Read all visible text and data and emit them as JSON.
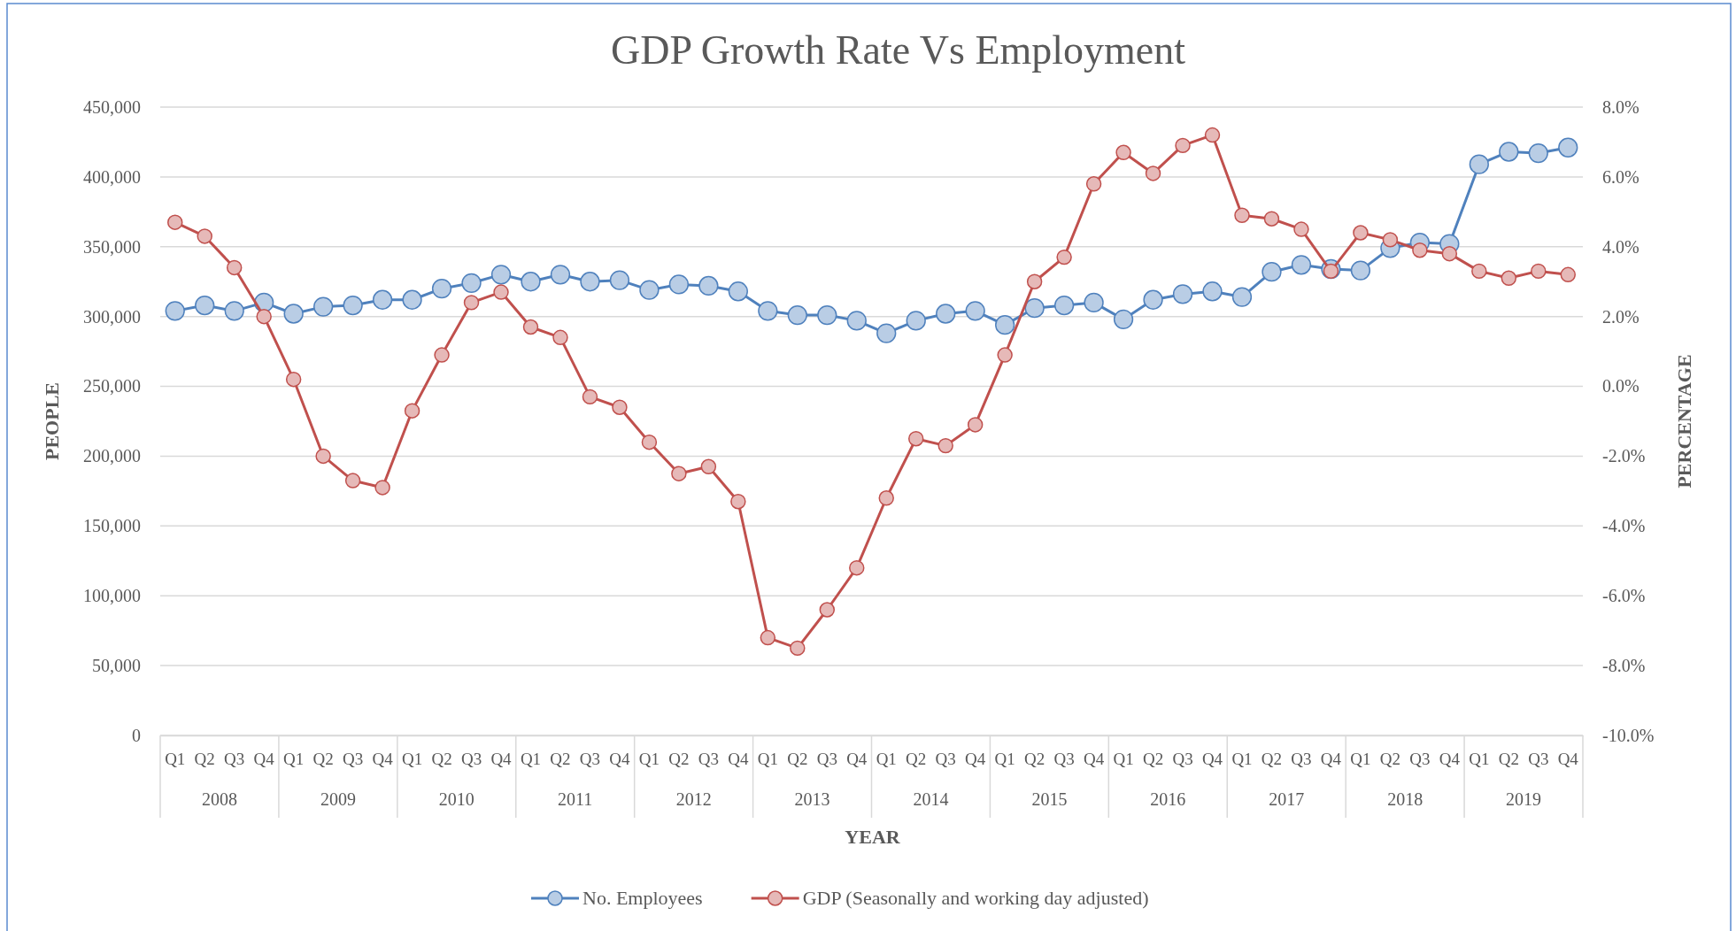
{
  "chart_data": {
    "type": "line",
    "title": "GDP Growth Rate Vs Employment",
    "xlabel": "YEAR",
    "ylabel": "PEOPLE",
    "y2label": "PERCENTAGE",
    "categories": [
      "Q1",
      "Q2",
      "Q3",
      "Q4",
      "Q1",
      "Q2",
      "Q3",
      "Q4",
      "Q1",
      "Q2",
      "Q3",
      "Q4",
      "Q1",
      "Q2",
      "Q3",
      "Q4",
      "Q1",
      "Q2",
      "Q3",
      "Q4",
      "Q1",
      "Q2",
      "Q3",
      "Q4",
      "Q1",
      "Q2",
      "Q3",
      "Q4",
      "Q1",
      "Q2",
      "Q3",
      "Q4",
      "Q1",
      "Q2",
      "Q3",
      "Q4",
      "Q1",
      "Q2",
      "Q3",
      "Q4",
      "Q1",
      "Q2",
      "Q3",
      "Q4",
      "Q1",
      "Q2",
      "Q3",
      "Q4"
    ],
    "annotations": [
      "2008",
      "2009",
      "2010",
      "2011",
      "2012",
      "2013",
      "2014",
      "2015",
      "2016",
      "2017",
      "2018",
      "2019"
    ],
    "series": [
      {
        "name": "No. Employees",
        "color": "#4f81bd",
        "values": [
          304000,
          308000,
          304000,
          310000,
          302000,
          307000,
          308000,
          312000,
          312000,
          320000,
          324000,
          330000,
          325000,
          330000,
          325000,
          326000,
          319000,
          323000,
          322000,
          318000,
          304000,
          301000,
          301000,
          297000,
          288000,
          297000,
          302000,
          304000,
          294000,
          306000,
          308000,
          310000,
          298000,
          312000,
          316000,
          318000,
          314000,
          332000,
          337000,
          334000,
          333000,
          349000,
          353000,
          352000,
          409000,
          418000,
          417000,
          421000
        ]
      },
      {
        "name": "GDP (Seasonally and working day adjusted)",
        "color": "#c0504d",
        "axis": "y2",
        "values": [
          4.7,
          4.3,
          3.4,
          2.0,
          0.2,
          -2.0,
          -2.7,
          -2.9,
          -0.7,
          0.9,
          2.4,
          2.7,
          1.7,
          1.4,
          -0.3,
          -0.6,
          -1.6,
          -2.5,
          -2.3,
          -3.3,
          -7.2,
          -7.5,
          -6.4,
          -5.2,
          -3.2,
          -1.5,
          -1.7,
          -1.1,
          0.9,
          3.0,
          3.7,
          5.8,
          6.7,
          6.1,
          6.9,
          7.2,
          4.9,
          4.8,
          4.5,
          3.3,
          4.4,
          4.2,
          3.9,
          3.8,
          3.3,
          3.1,
          3.3,
          3.2
        ]
      }
    ],
    "ylim": [
      0,
      450000
    ],
    "yticks": [
      0,
      {
        "value": 50000,
        "label": "50,000"
      },
      {
        "value": 100000,
        "label": "100,000"
      },
      {
        "value": 150000,
        "label": "150,000"
      },
      {
        "value": 200000,
        "label": "200,000"
      },
      {
        "value": 250000,
        "label": "250,000"
      },
      {
        "value": 300000,
        "label": "300,000"
      },
      {
        "value": 350000,
        "label": "350,000"
      },
      {
        "value": 400000,
        "label": "400,000"
      },
      {
        "value": 450000,
        "label": "450,000"
      }
    ],
    "y2lim": [
      -10,
      8
    ],
    "y2ticks": [
      {
        "value": -10,
        "label": "-10.0%"
      },
      {
        "value": -8,
        "label": "-8.0%"
      },
      {
        "value": -6,
        "label": "-6.0%"
      },
      {
        "value": -4,
        "label": "-4.0%"
      },
      {
        "value": -2,
        "label": "-2.0%"
      },
      {
        "value": 0,
        "label": "0.0%"
      },
      {
        "value": 2,
        "label": "2.0%"
      },
      {
        "value": 4,
        "label": "4.0%"
      },
      {
        "value": 6,
        "label": "6.0%"
      },
      {
        "value": 8,
        "label": "8.0%"
      }
    ],
    "grid": "y",
    "legend": "bottom",
    "marker": "circle",
    "line_style": "solid"
  }
}
